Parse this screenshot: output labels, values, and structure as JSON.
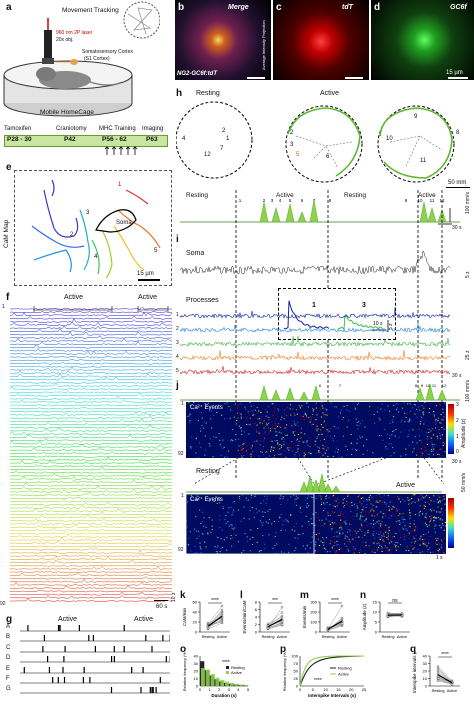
{
  "panel_letters": {
    "a": "a",
    "b": "b",
    "c": "c",
    "d": "d",
    "e": "e",
    "f": "f",
    "g": "g",
    "h": "h",
    "i": "i",
    "j": "j",
    "k": "k",
    "l": "l",
    "m": "m",
    "n": "n",
    "o": "o",
    "p": "p",
    "q": "q"
  },
  "a": {
    "movement_tracking": "Movement Tracking",
    "laser": "960 nm 2P laser",
    "objective": "20x obj.",
    "cortex_line1": "Somatosensory Cortex",
    "cortex_line2": "(S1 Cortex)",
    "homecage": "Mobile HomeCage"
  },
  "timeline": {
    "events": [
      "Tamoxifen",
      "Craniotomy",
      "MHC Training",
      "Imaging"
    ],
    "days": [
      "P28 - 30",
      "P42",
      "P56 - 62",
      "P63"
    ]
  },
  "b": {
    "title": "Merge",
    "label": "NG2-GC6f:tdT"
  },
  "c": {
    "title": "tdT",
    "side": "Average Intensity Projection"
  },
  "d": {
    "title": "GC6f",
    "scale": "15 µm"
  },
  "e": {
    "side": "CaM Map",
    "soma": "Soma",
    "nums": [
      "1",
      "2",
      "3",
      "4",
      "5"
    ],
    "scale": "15 µm"
  },
  "f": {
    "top": "1",
    "bottom": "92",
    "active1": "Active",
    "active2": "Active",
    "scale_t": "60 s",
    "scale_z": "10 z"
  },
  "g": {
    "rows": [
      "A",
      "B",
      "C",
      "D",
      "E",
      "F",
      "G"
    ],
    "active1": "Active",
    "active2": "Active"
  },
  "h": {
    "resting": "Resting",
    "active": "Active",
    "circle1_nums": [
      "1",
      "2",
      "4",
      "7",
      "12"
    ],
    "circle2_nums": [
      "2",
      "3",
      "5",
      "6"
    ],
    "circle3_nums": [
      "8",
      "9",
      "10",
      "11"
    ],
    "scale": "50 mm",
    "trace_labels": [
      "Resting",
      "Active",
      "Resting",
      "Active"
    ],
    "trace_nums": [
      "1",
      "2",
      "3",
      "4",
      "5",
      "6",
      "7",
      "8",
      "9",
      "10",
      "11",
      "12"
    ],
    "scale_right": "100 mm/s",
    "scale_t": "30 s"
  },
  "i": {
    "soma": "Soma",
    "processes": "Processes",
    "inset1": "1",
    "inset2": "3",
    "inset_scale_t": "10 s",
    "inset_scale_z": "5 z",
    "scale_z": "5 z",
    "scale_z2": "25 z",
    "scale_t": "30 s",
    "proc_rows": [
      "1",
      "2",
      "3",
      "4",
      "5"
    ]
  },
  "j": {
    "ca_events": "Ca²⁺ Events",
    "ca_events2": "Ca²⁺ Events",
    "row_top": "1",
    "row_bottom": "92",
    "row_top2": "1",
    "row_bottom2": "92",
    "amp_label": "Amplitude (z)",
    "amp_ticks": [
      "3",
      "2",
      "1",
      "0"
    ],
    "scale_speed": "100 mm/s",
    "scale_speed2": "50 mm/s",
    "scale_t": "30 s",
    "scale_t2": "1 s",
    "resting": "Resting",
    "active": "Active",
    "trace_nums": [
      "6",
      "7",
      "8",
      "9",
      "10",
      "11",
      "12"
    ]
  },
  "stats": {
    "k": {
      "ylabel": "CaM/min",
      "sig": "****",
      "ticks": [
        "60",
        "40",
        "20",
        "0"
      ],
      "x": [
        "Resting",
        "Active"
      ],
      "resting": [
        14,
        8,
        12,
        10,
        6,
        18,
        12,
        16,
        9,
        11,
        14,
        7,
        13,
        10
      ],
      "active": [
        40,
        26,
        38,
        44,
        18,
        30,
        24,
        52,
        34,
        22,
        28,
        36,
        20,
        30
      ],
      "ymax": 60
    },
    "l": {
      "ylabel": "Events/min/CaM",
      "sig": "***",
      "ticks": [
        "8",
        "6",
        "4",
        "2",
        "0"
      ],
      "x": [
        "Resting",
        "Active"
      ],
      "resting": [
        1.4,
        1.0,
        2.0,
        0.8,
        1.6,
        1.2,
        2.2,
        1.5,
        1.1,
        1.8,
        0.9,
        1.3,
        1.7,
        1.0
      ],
      "active": [
        3.4,
        2.6,
        4.2,
        1.8,
        3.0,
        2.2,
        5.2,
        3.6,
        2.4,
        4.0,
        2.0,
        3.2,
        2.8,
        6.6
      ],
      "ymax": 8
    },
    "m": {
      "ylabel": "Events/min",
      "sig": "****",
      "ticks": [
        "300",
        "200",
        "100",
        "0"
      ],
      "x": [
        "Resting",
        "Active"
      ],
      "resting": [
        30,
        20,
        40,
        18,
        26,
        44,
        22,
        34,
        28,
        16,
        36,
        24,
        20,
        30
      ],
      "active": [
        90,
        70,
        110,
        60,
        120,
        95,
        140,
        80,
        100,
        75,
        85,
        130,
        105,
        260
      ],
      "ymax": 300
    },
    "n": {
      "ylabel": "Amplitude (z)",
      "sig": "ns",
      "ticks": [
        "15",
        "10",
        "5",
        "0"
      ],
      "x": [
        "Resting",
        "Active"
      ],
      "resting": [
        8.5,
        7.8,
        9.2,
        8.0,
        7.5,
        9.0,
        8.8,
        7.6,
        8.2,
        9.4,
        8.1,
        7.9,
        8.6,
        9.6
      ],
      "active": [
        8.8,
        8.2,
        9.0,
        7.8,
        8.4,
        9.2,
        8.0,
        8.6,
        8.9,
        7.7,
        9.3,
        8.5,
        8.1,
        9.1
      ],
      "ymax": 15
    }
  },
  "o": {
    "ylabel": "Relative frequency (%)",
    "xlabel": "Duration (s)",
    "sig": "****",
    "legend": [
      "Resting",
      "Active"
    ],
    "yticks": [
      "40",
      "30",
      "20",
      "10",
      "0"
    ],
    "xticks": [
      "0",
      "1",
      "2",
      "3",
      "4",
      "5"
    ],
    "bins_x": [
      0.25,
      0.75,
      1.25,
      1.75,
      2.25,
      2.75,
      3.25,
      3.75,
      4.25,
      4.75
    ],
    "resting": [
      33,
      21,
      14,
      9,
      6,
      4,
      3,
      2,
      1.5,
      1
    ],
    "active": [
      24,
      22,
      16,
      11,
      8,
      6,
      4,
      3,
      2,
      1.5
    ],
    "xlim": [
      0,
      5
    ],
    "ylim": [
      0,
      40
    ]
  },
  "p": {
    "ylabel": "Relative frequency (%)",
    "xlabel": "Interspike Intervals (s)",
    "sig": "****",
    "legend": [
      "Resting",
      "Active"
    ],
    "yticks": [
      "100",
      "75",
      "50",
      "25",
      "0"
    ],
    "xticks": [
      "0",
      "5",
      "10",
      "15",
      "20",
      "25"
    ],
    "x": [
      0,
      1,
      2,
      3,
      4,
      5,
      6,
      8,
      10,
      12,
      15,
      20,
      25
    ],
    "resting": [
      0,
      22,
      40,
      54,
      64,
      72,
      78,
      86,
      91,
      94,
      97,
      99,
      100
    ],
    "active": [
      0,
      38,
      60,
      74,
      83,
      89,
      92,
      96,
      98,
      99,
      100,
      100,
      100
    ],
    "xlim": [
      0,
      25
    ],
    "ylim": [
      0,
      100
    ]
  },
  "q": {
    "ylabel": "Interspike intervals (s)",
    "sig": "****",
    "ticks": [
      "40",
      "30",
      "20",
      "10",
      "0"
    ],
    "x": [
      "Resting",
      "Active"
    ],
    "resting": [
      14,
      22,
      9,
      18,
      12,
      26,
      8,
      16,
      11,
      20,
      13,
      10,
      24,
      7
    ],
    "active": [
      4,
      6,
      3,
      5,
      4,
      7,
      3,
      5,
      4,
      6,
      3,
      4,
      5,
      2
    ],
    "ymax": 40
  }
}
